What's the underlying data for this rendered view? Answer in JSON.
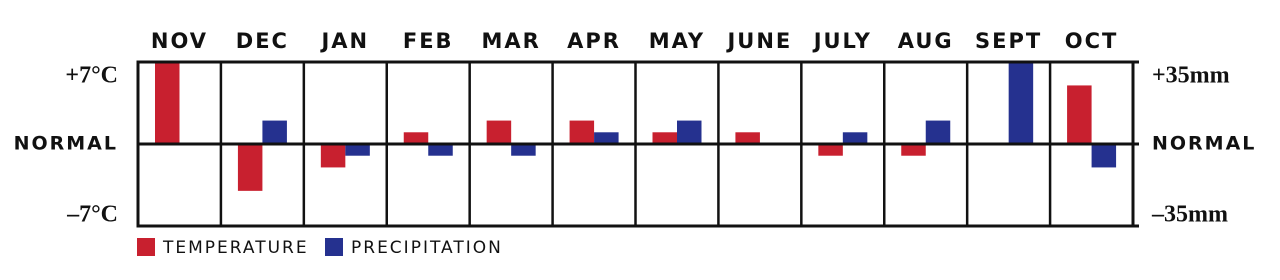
{
  "chart_data": {
    "type": "bar",
    "categories": [
      "NOV",
      "DEC",
      "JAN",
      "FEB",
      "MAR",
      "APR",
      "MAY",
      "JUNE",
      "JULY",
      "AUG",
      "SEPT",
      "OCT"
    ],
    "series": [
      {
        "name": "TEMPERATURE",
        "color": "#c8202f",
        "values": [
          7,
          -4,
          -2,
          1,
          2,
          2,
          1,
          1,
          -1,
          -1,
          0,
          5
        ]
      },
      {
        "name": "PRECIPITATION",
        "color": "#25318f",
        "axis": "y2",
        "values": [
          0,
          10,
          -5,
          -5,
          -5,
          5,
          10,
          0,
          5,
          10,
          35,
          -10
        ]
      }
    ],
    "ylim": [
      -7,
      7
    ],
    "yticks": [
      {
        "value": 7,
        "label": "+7°C"
      },
      {
        "value": 0,
        "label": "NORMAL"
      },
      {
        "value": -7,
        "label": "–7°C"
      }
    ],
    "y2lim": [
      -35,
      35
    ],
    "y2ticks": [
      {
        "value": 35,
        "label": "+35mm"
      },
      {
        "value": 0,
        "label": "NORMAL"
      },
      {
        "value": -35,
        "label": "–35mm"
      }
    ]
  }
}
